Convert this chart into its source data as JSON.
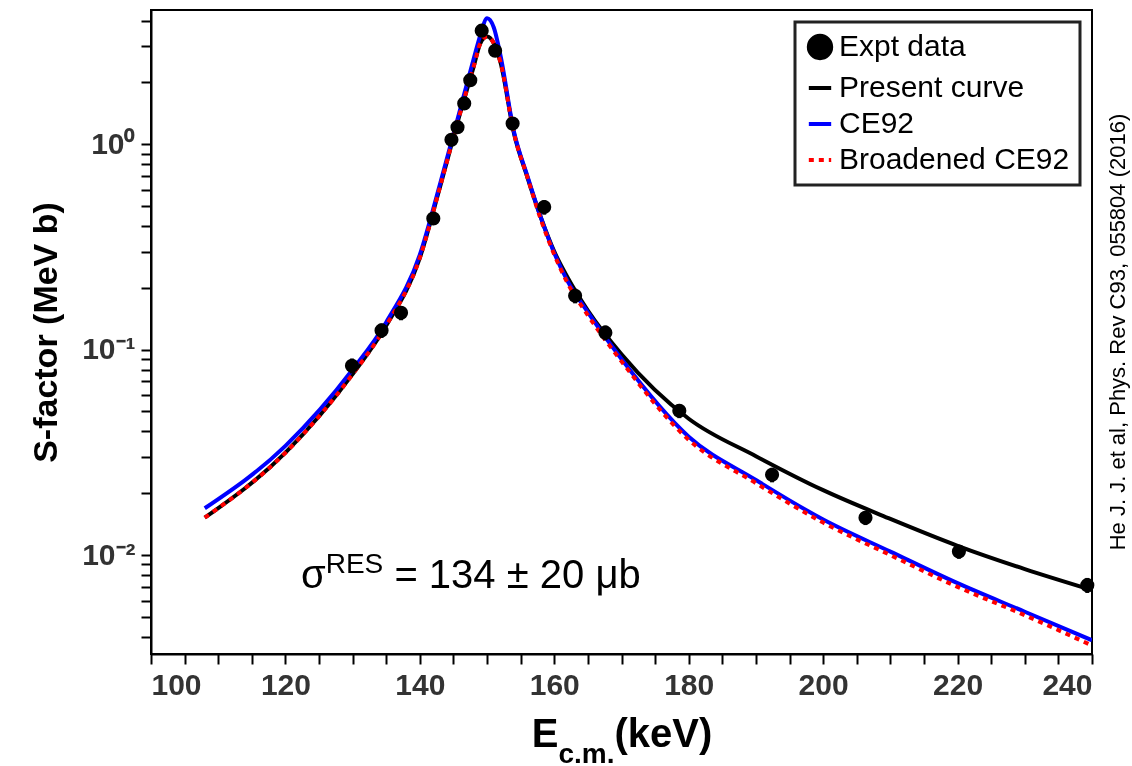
{
  "chart_data": {
    "type": "line",
    "xlabel": "E$_{c.m.}$(keV)",
    "ylabel": "S-factor (MeV b)",
    "xlim": [
      100,
      240
    ],
    "xticks": [
      100,
      {
        "value": 105,
        "label": null
      },
      {
        "value": 110,
        "label": null
      },
      {
        "value": 115,
        "label": null
      },
      120,
      {
        "value": 125,
        "label": null
      },
      {
        "value": 130,
        "label": null
      },
      {
        "value": 135,
        "label": null
      },
      140,
      {
        "value": 145,
        "label": null
      },
      {
        "value": 150,
        "label": null
      },
      {
        "value": 155,
        "label": null
      },
      160,
      {
        "value": 165,
        "label": null
      },
      {
        "value": 170,
        "label": null
      },
      {
        "value": 175,
        "label": null
      },
      180,
      {
        "value": 185,
        "label": null
      },
      {
        "value": 190,
        "label": null
      },
      {
        "value": 195,
        "label": null
      },
      200,
      {
        "value": 205,
        "label": null
      },
      {
        "value": 210,
        "label": null
      },
      {
        "value": 215,
        "label": null
      },
      220,
      {
        "value": 225,
        "label": null
      },
      {
        "value": 230,
        "label": null
      },
      {
        "value": 235,
        "label": null
      },
      240
    ],
    "ylim": [
      0.0033,
      4.5
    ],
    "yticks": [
      {
        "value": 0.004,
        "label": null
      },
      {
        "value": 0.005,
        "label": null
      },
      {
        "value": 0.006,
        "label": null
      },
      {
        "value": 0.007,
        "label": null
      },
      {
        "value": 0.008,
        "label": null
      },
      {
        "value": 0.009,
        "label": null
      },
      {
        "value": 0.01,
        "label": "10⁻²"
      },
      {
        "value": 0.02,
        "label": null
      },
      {
        "value": 0.03,
        "label": null
      },
      {
        "value": 0.04,
        "label": null
      },
      {
        "value": 0.05,
        "label": null
      },
      {
        "value": 0.06,
        "label": null
      },
      {
        "value": 0.07,
        "label": null
      },
      {
        "value": 0.08,
        "label": null
      },
      {
        "value": 0.09,
        "label": null
      },
      {
        "value": 0.1,
        "label": "10⁻¹"
      },
      {
        "value": 0.2,
        "label": null
      },
      {
        "value": 0.3,
        "label": null
      },
      {
        "value": 0.4,
        "label": null
      },
      {
        "value": 0.5,
        "label": null
      },
      {
        "value": 0.6,
        "label": null
      },
      {
        "value": 0.7,
        "label": null
      },
      {
        "value": 0.8,
        "label": null
      },
      {
        "value": 0.9,
        "label": null
      },
      {
        "value": 1,
        "label": "10⁰"
      },
      {
        "value": 2,
        "label": null
      },
      {
        "value": 3,
        "label": null
      },
      {
        "value": 4,
        "label": null
      }
    ],
    "log": true,
    "legend": "top right",
    "annotations": [
      "σ$^{RES}$ = 134 ± 20 μb",
      "He J. J. et al, Phys. Rev C93, 055804 (2016)"
    ],
    "series": [
      {
        "name": "Expt data",
        "type": "scatter",
        "marker": "circle",
        "color": "#000000",
        "x": [
          129.9,
          134.3,
          137.2,
          142.0,
          144.7,
          145.6,
          146.6,
          147.5,
          149.2,
          151.2,
          153.8,
          158.5,
          163.1,
          167.6,
          178.6,
          192.4,
          206.3,
          220.2,
          239.3
        ],
        "values": [
          0.0835,
          0.124,
          0.151,
          0.435,
          1.05,
          1.21,
          1.58,
          2.05,
          3.57,
          2.85,
          1.26,
          0.494,
          0.183,
          0.121,
          0.0504,
          0.0246,
          0.0152,
          0.0104,
          0.00714
        ],
        "errors": [
          0.007,
          0.01,
          0.012,
          0.03,
          0.07,
          0.08,
          0.1,
          0.12,
          0.2,
          0.18,
          0.08,
          0.04,
          0.015,
          0.01,
          0.004,
          0.002,
          0.0012,
          0.0008,
          0.0006
        ]
      },
      {
        "name": "Present curve",
        "line_style": "solid",
        "color": "#000000",
        "x": [
          108,
          120,
          130,
          135,
          140,
          143,
          146,
          148,
          149,
          150,
          151,
          152,
          154,
          156,
          158,
          160,
          162,
          165,
          170,
          180,
          190,
          200,
          210,
          220,
          230,
          240
        ],
        "values": [
          0.0152,
          0.0315,
          0.076,
          0.131,
          0.28,
          0.62,
          1.42,
          2.38,
          3.1,
          3.34,
          3.1,
          2.5,
          1.13,
          0.69,
          0.44,
          0.3,
          0.224,
          0.155,
          0.095,
          0.0461,
          0.0303,
          0.0207,
          0.015,
          0.0111,
          0.00855,
          0.00676
        ]
      },
      {
        "name": "CE92",
        "line_style": "solid",
        "color": "#0000ff",
        "x": [
          108,
          120,
          130,
          135,
          140,
          143,
          146,
          148,
          149,
          150,
          151,
          152,
          154,
          156,
          158,
          160,
          162,
          165,
          170,
          180,
          190,
          200,
          210,
          220,
          230,
          240
        ],
        "values": [
          0.0169,
          0.034,
          0.08,
          0.136,
          0.29,
          0.64,
          1.48,
          2.6,
          3.4,
          4.1,
          3.7,
          2.7,
          1.15,
          0.7,
          0.44,
          0.295,
          0.215,
          0.152,
          0.09,
          0.0377,
          0.0232,
          0.0149,
          0.0104,
          0.0073,
          0.0053,
          0.00385
        ]
      },
      {
        "name": "Broadened CE92",
        "line_style": "dotted",
        "color": "#ff0000",
        "x": [
          108,
          120,
          130,
          135,
          140,
          143,
          146,
          148,
          149,
          150,
          151,
          152,
          154,
          156,
          158,
          160,
          162,
          165,
          170,
          180,
          190,
          200,
          210,
          220,
          230,
          240
        ],
        "values": [
          0.0152,
          0.0315,
          0.076,
          0.131,
          0.28,
          0.62,
          1.42,
          2.38,
          3.1,
          3.34,
          3.1,
          2.5,
          1.13,
          0.69,
          0.43,
          0.29,
          0.21,
          0.147,
          0.0877,
          0.0364,
          0.0224,
          0.0144,
          0.01,
          0.007,
          0.0051,
          0.00363
        ]
      }
    ]
  }
}
